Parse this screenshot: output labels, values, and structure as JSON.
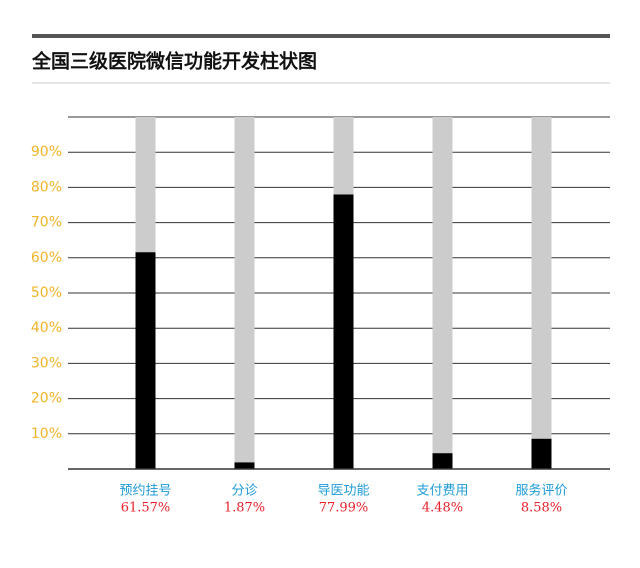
{
  "chart_data": {
    "type": "bar",
    "title": "全国三级医院微信功能开发柱状图",
    "categories": [
      "预约挂号",
      "分诊",
      "导医功能",
      "支付费用",
      "服务评价"
    ],
    "values": [
      61.57,
      1.87,
      77.99,
      4.48,
      8.58
    ],
    "value_labels": [
      "61.57%",
      "1.87%",
      "77.99%",
      "4.48%",
      "8.58%"
    ],
    "color": "#000000",
    "track_color": "#cccccc",
    "ylim": [
      0,
      100
    ],
    "yticks": [
      {
        "value": 10,
        "label": "10%"
      },
      {
        "value": 20,
        "label": "20%"
      },
      {
        "value": 30,
        "label": "30%"
      },
      {
        "value": 40,
        "label": "40%"
      },
      {
        "value": 50,
        "label": "50%"
      },
      {
        "value": 60,
        "label": "60%"
      },
      {
        "value": 70,
        "label": "70%"
      },
      {
        "value": 80,
        "label": "80%"
      },
      {
        "value": 90,
        "label": "90%"
      }
    ],
    "grid": true
  }
}
